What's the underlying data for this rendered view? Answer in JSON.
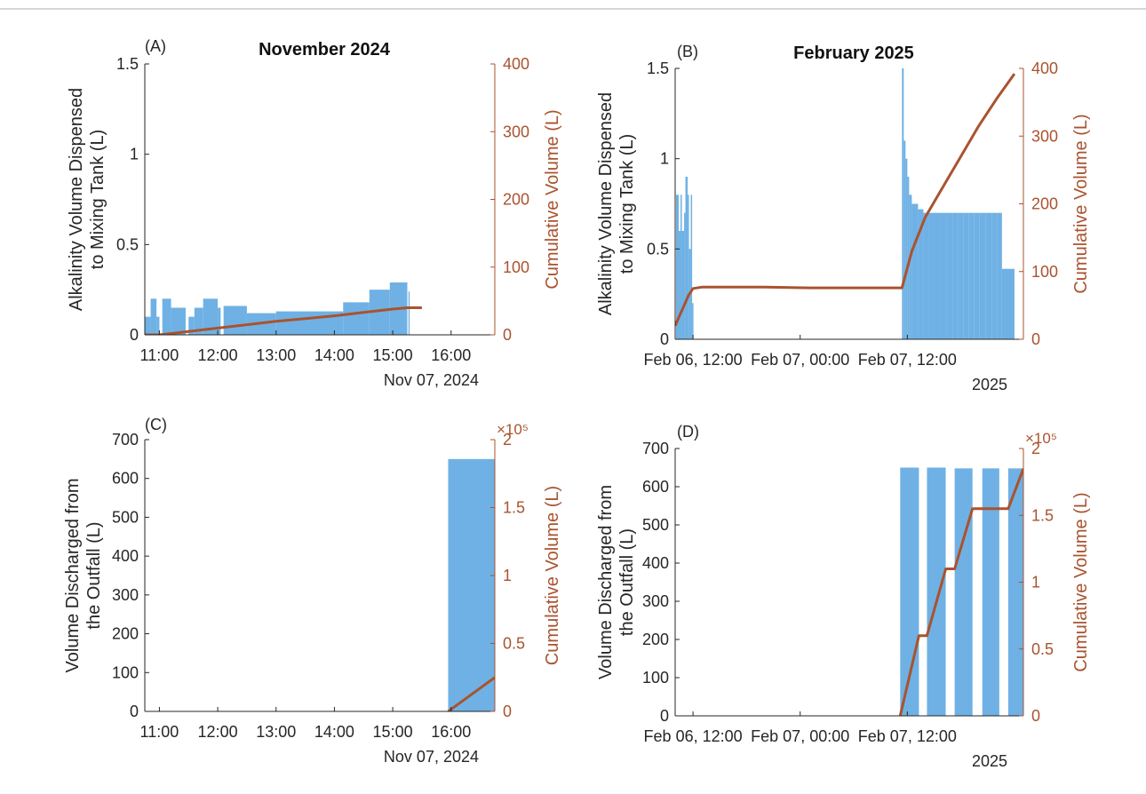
{
  "colors": {
    "bar": "#6fb1e4",
    "line": "#a9532f",
    "right_axis": "#a9532f",
    "axis": "#262626"
  },
  "chart_data": [
    {
      "id": "A",
      "type": "bar+line",
      "panel_label": "(A)",
      "title": "November 2024",
      "ylabel_left": [
        "Alkalinity Volume Dispensed",
        "to Mixing Tank (L)"
      ],
      "ylabel_right": "Cumulative Volume (L)",
      "x_unit": "hours",
      "xlim": [
        10.75,
        16.75
      ],
      "xticks": [
        11,
        12,
        13,
        14,
        15,
        16
      ],
      "xtick_labels": [
        "11:00",
        "12:00",
        "13:00",
        "14:00",
        "15:00",
        "16:00"
      ],
      "x_secondary_label": "Nov 07, 2024",
      "ylim_left": [
        0,
        1.5
      ],
      "yticks_left": [
        0,
        0.5,
        1,
        1.5
      ],
      "ytick_labels_left": [
        "0",
        "0.5",
        "1",
        "1.5"
      ],
      "ylim_right": [
        0,
        400
      ],
      "yticks_right": [
        0,
        100,
        200,
        300,
        400
      ],
      "ytick_labels_right": [
        "0",
        "100",
        "200",
        "300",
        "400"
      ],
      "right_exponent": "",
      "bars": [
        {
          "x0": 10.75,
          "x1": 10.85,
          "v": 0.1
        },
        {
          "x0": 10.85,
          "x1": 10.95,
          "v": 0.2
        },
        {
          "x0": 10.95,
          "x1": 11.0,
          "v": 0.1
        },
        {
          "x0": 11.05,
          "x1": 11.2,
          "v": 0.2
        },
        {
          "x0": 11.2,
          "x1": 11.45,
          "v": 0.15
        },
        {
          "x0": 11.5,
          "x1": 11.6,
          "v": 0.1
        },
        {
          "x0": 11.6,
          "x1": 11.75,
          "v": 0.15
        },
        {
          "x0": 11.75,
          "x1": 12.0,
          "v": 0.2
        },
        {
          "x0": 12.0,
          "x1": 12.05,
          "v": 0.15
        },
        {
          "x0": 12.1,
          "x1": 12.5,
          "v": 0.16
        },
        {
          "x0": 12.5,
          "x1": 13.0,
          "v": 0.12
        },
        {
          "x0": 13.0,
          "x1": 14.15,
          "v": 0.13
        },
        {
          "x0": 14.15,
          "x1": 14.6,
          "v": 0.18
        },
        {
          "x0": 14.6,
          "x1": 14.95,
          "v": 0.25
        },
        {
          "x0": 14.95,
          "x1": 15.25,
          "v": 0.29
        },
        {
          "x0": 15.27,
          "x1": 15.29,
          "v": 0.24
        }
      ],
      "line": {
        "x": [
          10.75,
          11.0,
          11.5,
          12.0,
          12.5,
          13.0,
          13.5,
          14.0,
          14.5,
          15.0,
          15.25,
          15.5
        ],
        "y": [
          0,
          0,
          5,
          10,
          15,
          20,
          24,
          28,
          33,
          38,
          40,
          40
        ]
      }
    },
    {
      "id": "B",
      "type": "bar+line",
      "panel_label": "(B)",
      "title": "February 2025",
      "ylabel_left": [
        "Alkalinity Volume Dispensed",
        "to Mixing Tank (L)"
      ],
      "ylabel_right": "Cumulative Volume (L)",
      "x_unit": "hours since Feb 06 00:00",
      "xlim": [
        10,
        49
      ],
      "xticks": [
        12,
        24,
        36
      ],
      "xtick_labels": [
        "Feb 06, 12:00",
        "Feb 07, 00:00",
        "Feb 07, 12:00"
      ],
      "x_secondary_label": "2025",
      "ylim_left": [
        0,
        1.5
      ],
      "yticks_left": [
        0,
        0.5,
        1,
        1.5
      ],
      "ytick_labels_left": [
        "0",
        "0.5",
        "1",
        "1.5"
      ],
      "ylim_right": [
        0,
        400
      ],
      "yticks_right": [
        0,
        100,
        200,
        300,
        400
      ],
      "ytick_labels_right": [
        "0",
        "100",
        "200",
        "300",
        "400"
      ],
      "right_exponent": "",
      "bars": [
        {
          "x0": 10.1,
          "x1": 10.4,
          "v": 0.8
        },
        {
          "x0": 10.4,
          "x1": 10.6,
          "v": 0.6
        },
        {
          "x0": 10.6,
          "x1": 10.75,
          "v": 0.8
        },
        {
          "x0": 10.75,
          "x1": 11.0,
          "v": 0.6
        },
        {
          "x0": 11.0,
          "x1": 11.15,
          "v": 0.7
        },
        {
          "x0": 11.15,
          "x1": 11.4,
          "v": 0.9
        },
        {
          "x0": 11.4,
          "x1": 11.55,
          "v": 0.8
        },
        {
          "x0": 11.55,
          "x1": 11.75,
          "v": 0.5
        },
        {
          "x0": 11.75,
          "x1": 11.9,
          "v": 0.8
        },
        {
          "x0": 11.9,
          "x1": 12.05,
          "v": 0.2
        },
        {
          "x0": 35.4,
          "x1": 35.6,
          "v": 1.5
        },
        {
          "x0": 35.6,
          "x1": 35.8,
          "v": 1.1
        },
        {
          "x0": 35.8,
          "x1": 36.0,
          "v": 1.0
        },
        {
          "x0": 36.0,
          "x1": 36.2,
          "v": 0.9
        },
        {
          "x0": 36.2,
          "x1": 36.5,
          "v": 0.8
        },
        {
          "x0": 36.5,
          "x1": 37.2,
          "v": 0.75
        },
        {
          "x0": 37.2,
          "x1": 37.8,
          "v": 0.72
        },
        {
          "x0": 37.8,
          "x1": 38.4,
          "v": 0.7
        },
        {
          "x0": 38.4,
          "x1": 39.0,
          "v": 0.7
        },
        {
          "x0": 39.0,
          "x1": 39.7,
          "v": 0.7
        },
        {
          "x0": 39.7,
          "x1": 40.4,
          "v": 0.7
        },
        {
          "x0": 40.4,
          "x1": 41.1,
          "v": 0.7
        },
        {
          "x0": 41.1,
          "x1": 41.7,
          "v": 0.7
        },
        {
          "x0": 41.7,
          "x1": 42.3,
          "v": 0.7
        },
        {
          "x0": 42.3,
          "x1": 42.9,
          "v": 0.7
        },
        {
          "x0": 42.9,
          "x1": 43.5,
          "v": 0.7
        },
        {
          "x0": 43.5,
          "x1": 44.1,
          "v": 0.7
        },
        {
          "x0": 44.1,
          "x1": 44.8,
          "v": 0.7
        },
        {
          "x0": 44.8,
          "x1": 45.5,
          "v": 0.7
        },
        {
          "x0": 45.5,
          "x1": 46.1,
          "v": 0.7
        },
        {
          "x0": 46.1,
          "x1": 46.6,
          "v": 0.7
        },
        {
          "x0": 46.6,
          "x1": 48.0,
          "v": 0.39
        }
      ],
      "line": {
        "x": [
          10,
          10.5,
          11,
          11.5,
          12.0,
          13,
          15,
          20,
          25,
          30,
          35.4,
          36.5,
          38,
          40,
          42,
          44,
          46,
          48.0
        ],
        "y": [
          20,
          35,
          50,
          65,
          75,
          77,
          77,
          77,
          76,
          76,
          76,
          130,
          180,
          225,
          270,
          315,
          355,
          392
        ]
      }
    },
    {
      "id": "C",
      "type": "bar+line",
      "panel_label": "(C)",
      "title": "",
      "ylabel_left": [
        "Volume Discharged from",
        "the Outfall (L)"
      ],
      "ylabel_right": "Cumulative Volume (L)",
      "x_unit": "hours",
      "xlim": [
        10.75,
        16.75
      ],
      "xticks": [
        11,
        12,
        13,
        14,
        15,
        16
      ],
      "xtick_labels": [
        "11:00",
        "12:00",
        "13:00",
        "14:00",
        "15:00",
        "16:00"
      ],
      "x_secondary_label": "Nov 07, 2024",
      "ylim_left": [
        0,
        700
      ],
      "yticks_left": [
        0,
        100,
        200,
        300,
        400,
        500,
        600,
        700
      ],
      "ytick_labels_left": [
        "0",
        "100",
        "200",
        "300",
        "400",
        "500",
        "600",
        "700"
      ],
      "ylim_right": [
        0,
        200000
      ],
      "yticks_right": [
        0,
        50000,
        100000,
        150000,
        200000
      ],
      "ytick_labels_right": [
        "0",
        "0.5",
        "1",
        "1.5",
        "2"
      ],
      "right_exponent": "×10⁵",
      "bars": [
        {
          "x0": 15.95,
          "x1": 16.75,
          "v": 650
        }
      ],
      "line": {
        "x": [
          15.95,
          16.75
        ],
        "y": [
          0,
          25000
        ]
      }
    },
    {
      "id": "D",
      "type": "bar+line",
      "panel_label": "(D)",
      "title": "",
      "ylabel_left": [
        "Volume Discharged from",
        "the Outfall (L)"
      ],
      "ylabel_right": "Cumulative Volume (L)",
      "x_unit": "hours since Feb 06 00:00",
      "xlim": [
        10,
        49
      ],
      "xticks": [
        12,
        24,
        36
      ],
      "xtick_labels": [
        "Feb 06, 12:00",
        "Feb 07, 00:00",
        "Feb 07, 12:00"
      ],
      "x_secondary_label": "2025",
      "ylim_left": [
        0,
        700
      ],
      "yticks_left": [
        0,
        100,
        200,
        300,
        400,
        500,
        600,
        700
      ],
      "ytick_labels_left": [
        "0",
        "100",
        "200",
        "300",
        "400",
        "500",
        "600",
        "700"
      ],
      "ylim_right": [
        0,
        200000
      ],
      "yticks_right": [
        0,
        50000,
        100000,
        150000,
        200000
      ],
      "ytick_labels_right": [
        "0",
        "0.5",
        "1",
        "1.5",
        "2"
      ],
      "right_exponent": "×10⁵",
      "bars": [
        {
          "x0": 35.2,
          "x1": 37.3,
          "v": 650
        },
        {
          "x0": 38.2,
          "x1": 40.3,
          "v": 650
        },
        {
          "x0": 41.3,
          "x1": 43.3,
          "v": 648
        },
        {
          "x0": 44.4,
          "x1": 46.3,
          "v": 648
        },
        {
          "x0": 47.3,
          "x1": 49.0,
          "v": 648
        }
      ],
      "line": {
        "x": [
          35.2,
          37.3,
          38.2,
          40.3,
          41.3,
          43.3,
          44.4,
          46.3,
          47.3,
          49.0
        ],
        "y": [
          0,
          60000,
          60000,
          110000,
          110000,
          155000,
          155000,
          155000,
          155000,
          185000
        ]
      }
    }
  ]
}
